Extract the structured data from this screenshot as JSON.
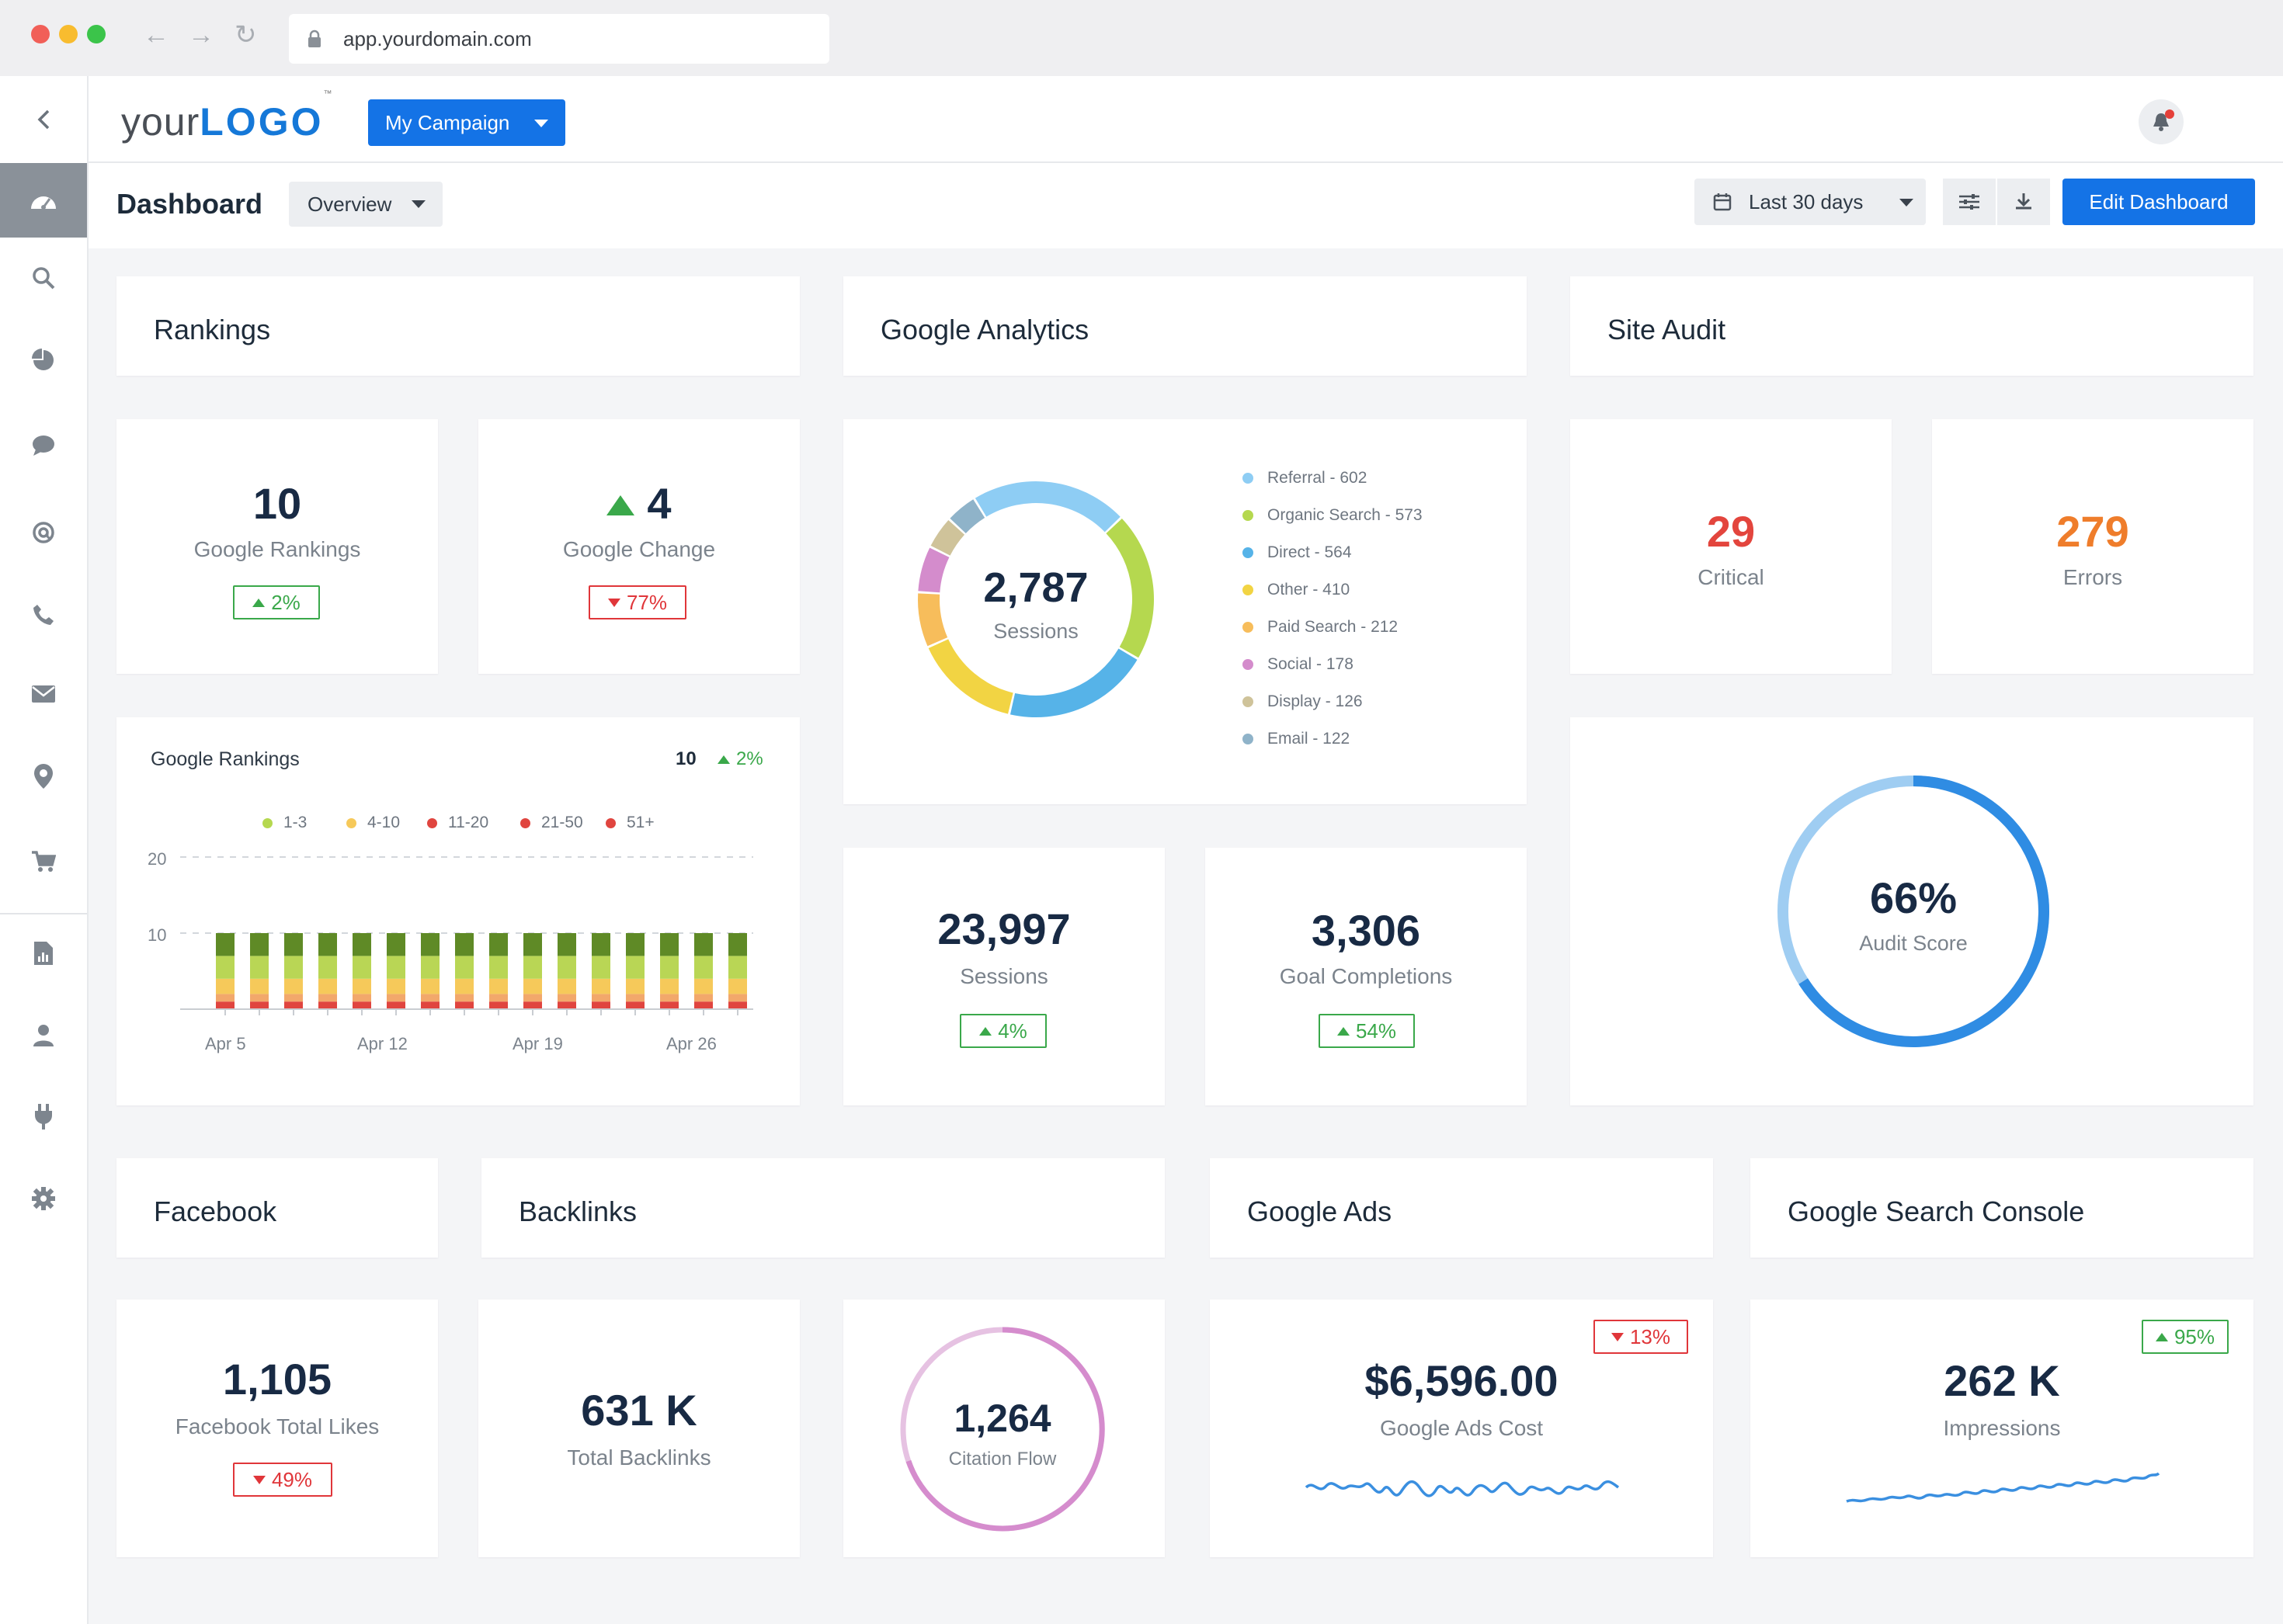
{
  "browser": {
    "url": "app.yourdomain.com"
  },
  "header": {
    "logo_prefix": "your",
    "logo_brand": "LOGO",
    "logo_tm": "™",
    "campaign_label": "My Campaign"
  },
  "subheader": {
    "title": "Dashboard",
    "view_label": "Overview",
    "date_range": "Last 30 days",
    "edit_label": "Edit Dashboard"
  },
  "sections": {
    "rankings": "Rankings",
    "analytics": "Google Analytics",
    "audit": "Site Audit",
    "facebook": "Facebook",
    "backlinks": "Backlinks",
    "ads": "Google Ads",
    "gsc": "Google Search Console"
  },
  "rankings": {
    "google_rankings": {
      "value": "10",
      "label": "Google Rankings",
      "delta": "2%"
    },
    "google_change": {
      "value": "4",
      "label": "Google Change",
      "delta": "77%"
    }
  },
  "rank_chart": {
    "title": "Google Rankings",
    "value": "10",
    "delta": "2%",
    "legend": [
      "1-3",
      "4-10",
      "11-20",
      "21-50",
      "51+"
    ],
    "y_ticks": [
      "20",
      "10"
    ],
    "x_ticks": [
      "Apr 5",
      "Apr 12",
      "Apr 19",
      "Apr 26"
    ]
  },
  "chart_data": {
    "type": "bar",
    "title": "Google Rankings",
    "stacked": true,
    "ylim": [
      0,
      20
    ],
    "categories": [
      "1",
      "2",
      "3",
      "4",
      "5",
      "6",
      "7",
      "8",
      "9",
      "10",
      "11",
      "12",
      "13",
      "14",
      "15",
      "16"
    ],
    "x_tick_labels": [
      "Apr 5",
      "Apr 12",
      "Apr 19",
      "Apr 26"
    ],
    "series": [
      {
        "name": "51+",
        "color": "#e0453f",
        "values": [
          1,
          1,
          1,
          1,
          1,
          1,
          1,
          1,
          1,
          1,
          1,
          1,
          1,
          1,
          1,
          1
        ]
      },
      {
        "name": "21-50",
        "color": "#f2a86b",
        "values": [
          1,
          1,
          1,
          1,
          1,
          1,
          1,
          1,
          1,
          1,
          1,
          1,
          1,
          1,
          1,
          1
        ]
      },
      {
        "name": "11-20",
        "color": "#f6c95a",
        "values": [
          2,
          2,
          2,
          2,
          2,
          2,
          2,
          2,
          2,
          2,
          2,
          2,
          2,
          2,
          2,
          2
        ]
      },
      {
        "name": "4-10",
        "color": "#b9d655",
        "values": [
          3,
          3,
          3,
          3,
          3,
          3,
          3,
          3,
          3,
          3,
          3,
          3,
          3,
          3,
          3,
          3
        ]
      },
      {
        "name": "1-3",
        "color": "#5f8a26",
        "values": [
          3,
          3,
          3,
          3,
          3,
          3,
          3,
          3,
          3,
          3,
          3,
          3,
          3,
          3,
          3,
          3
        ]
      }
    ]
  },
  "analytics": {
    "donut_total": "2,787",
    "donut_label": "Sessions",
    "legend": [
      {
        "label": "Referral - 602",
        "value": 602,
        "color": "#8ecdf4"
      },
      {
        "label": "Organic Search - 573",
        "value": 573,
        "color": "#b5d84f"
      },
      {
        "label": "Direct - 564",
        "value": 564,
        "color": "#56b3e8"
      },
      {
        "label": "Other - 410",
        "value": 410,
        "color": "#f2d443"
      },
      {
        "label": "Paid Search - 212",
        "value": 212,
        "color": "#f7bd5b"
      },
      {
        "label": "Social - 178",
        "value": 178,
        "color": "#d48ccc"
      },
      {
        "label": "Display - 126",
        "value": 126,
        "color": "#cfc39a"
      },
      {
        "label": "Email - 122",
        "value": 122,
        "color": "#8fb3c9"
      }
    ],
    "sessions": {
      "value": "23,997",
      "label": "Sessions",
      "delta": "4%"
    },
    "goals": {
      "value": "3,306",
      "label": "Goal Completions",
      "delta": "54%"
    }
  },
  "audit": {
    "critical": {
      "value": "29",
      "label": "Critical",
      "color": "#e3453d"
    },
    "errors": {
      "value": "279",
      "label": "Errors",
      "color": "#ef7d2b"
    },
    "score": {
      "value": "66%",
      "label": "Audit Score",
      "fraction": 0.66
    }
  },
  "facebook": {
    "value": "1,105",
    "label": "Facebook Total Likes",
    "delta": "49%"
  },
  "backlinks": {
    "total": {
      "value": "631 K",
      "label": "Total Backlinks"
    },
    "citation": {
      "value": "1,264",
      "label": "Citation Flow"
    }
  },
  "ads": {
    "value": "$6,596.00",
    "label": "Google Ads Cost",
    "delta": "13%"
  },
  "gsc": {
    "value": "262 K",
    "label": "Impressions",
    "delta": "95%"
  },
  "colors": {
    "accent": "#1473e6",
    "up": "#3aa84a",
    "down": "#e0363a"
  }
}
